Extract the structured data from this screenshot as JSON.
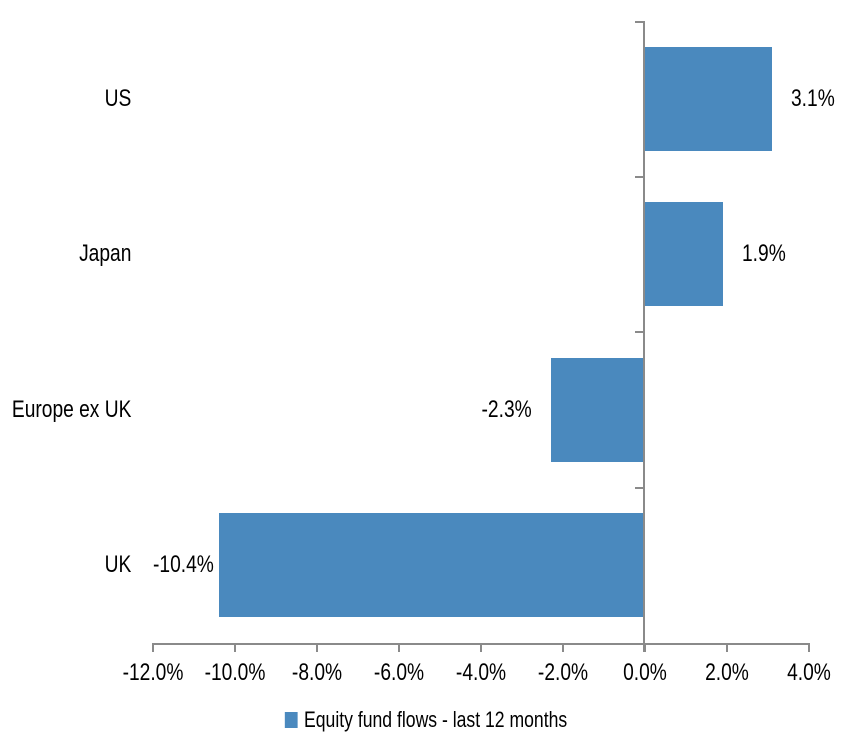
{
  "chart_data": {
    "type": "bar",
    "orientation": "horizontal",
    "title": "",
    "categories": [
      "US",
      "Japan",
      "Europe ex UK",
      "UK"
    ],
    "values": [
      3.1,
      1.9,
      -2.3,
      -10.4
    ],
    "value_labels": [
      "3.1%",
      "1.9%",
      "-2.3%",
      "-10.4%"
    ],
    "x_tick_labels": [
      "-12.0%",
      "-10.0%",
      "-8.0%",
      "-6.0%",
      "-4.0%",
      "-2.0%",
      "0.0%",
      "2.0%",
      "4.0%"
    ],
    "x_tick_values": [
      -12,
      -10,
      -8,
      -6,
      -4,
      -2,
      0,
      2,
      4
    ],
    "xlim": [
      -12,
      4
    ],
    "grid": false,
    "legend_position": "bottom",
    "legend_label": "Equity fund flows - last 12 months",
    "bar_color": "#4a89be",
    "axis_color": "#8a8a8a",
    "text_color": "#000000"
  }
}
